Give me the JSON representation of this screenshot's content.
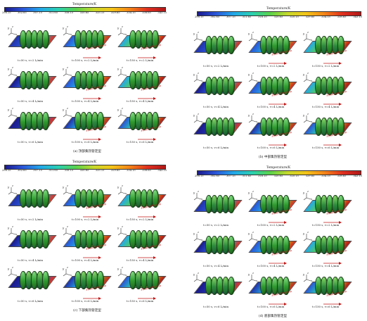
{
  "colorbar": {
    "title": "Temperature/K",
    "ticks": [
      "298.15",
      "302.65",
      "307.15",
      "311.65",
      "316.15",
      "320.65",
      "325.15",
      "329.65",
      "334.15",
      "338.65",
      "343.15"
    ],
    "gradient_colors": [
      "#1a1a8c",
      "#2a55d8",
      "#22a8e8",
      "#2ad0b0",
      "#5ad24a",
      "#c8d82a",
      "#f4c418",
      "#f48418",
      "#e03020",
      "#b01818"
    ]
  },
  "flow_direction_label": "Flow direction",
  "axis_labels": {
    "x": "x",
    "y": "y",
    "z": "z"
  },
  "panels": [
    {
      "caption": "(a) 顶部集热管定型",
      "cells": [
        "t=50 s, v=2 L/min",
        "t=100 s, v=2 L/min",
        "t=150 s, v=2 L/min",
        "t=50 s, v=4 L/min",
        "t=100 s, v=4 L/min",
        "t=150 s, v=4 L/min",
        "t=50 s, v=6 L/min",
        "t=100 s, v=6 L/min",
        "t=150 s, v=6 L/min"
      ]
    },
    {
      "caption": "(b) 中部集热管定型",
      "cells": [
        "t=50 s, v=2 L/min",
        "t=100 s, v=2 L/min",
        "t=150 s, v=2 L/min",
        "t=50 s, v=4 L/min",
        "t=100 s, v=4 L/min",
        "t=150 s, v=4 L/min",
        "t=50 s, v=6 L/min",
        "t=100 s, v=6 L/min",
        "t=150 s, v=6 L/min"
      ]
    },
    {
      "caption": "(c) 下部集热管定型",
      "cells": [
        "t=50 s, v=2 L/min",
        "t=100 s, v=2 L/min",
        "t=150 s, v=2 L/min",
        "t=50 s, v=4 L/min",
        "t=100 s, v=4 L/min",
        "t=150 s, v=4 L/min",
        "t=50 s, v=6 L/min",
        "t=100 s, v=6 L/min",
        "t=150 s, v=6 L/min"
      ]
    },
    {
      "caption": "(d) 底部集热管定型",
      "cells": [
        "t=50 s, v=2 L/min",
        "t=100 s, v=2 L/min",
        "t=150 s, v=2 L/min",
        "t=50 s, v=4 L/min",
        "t=100 s, v=4 L/min",
        "t=150 s, v=4 L/min",
        "t=50 s, v=6 L/min",
        "t=100 s, v=6 L/min",
        "t=150 s, v=6 L/min"
      ]
    }
  ],
  "sheet_gradients": [
    [
      "#2233aa",
      "#2a55d8",
      "#22a8e8",
      "#e03020"
    ],
    [
      "#2a55d8",
      "#22a8e8",
      "#5ad24a",
      "#e03020"
    ],
    [
      "#22a8e8",
      "#5ad24a",
      "#f4c418",
      "#c01818"
    ],
    [
      "#1a1a8c",
      "#2a55d8",
      "#22a8e8",
      "#e03020"
    ],
    [
      "#2a55d8",
      "#22a8e8",
      "#c8d82a",
      "#d02818"
    ],
    [
      "#22a8e8",
      "#5ad24a",
      "#f48418",
      "#b01818"
    ],
    [
      "#1a1a8c",
      "#2233aa",
      "#2a55d8",
      "#e03020"
    ],
    [
      "#2233aa",
      "#22a8e8",
      "#5ad24a",
      "#d02818"
    ],
    [
      "#2a55d8",
      "#2ad0b0",
      "#f4c418",
      "#b01818"
    ]
  ]
}
